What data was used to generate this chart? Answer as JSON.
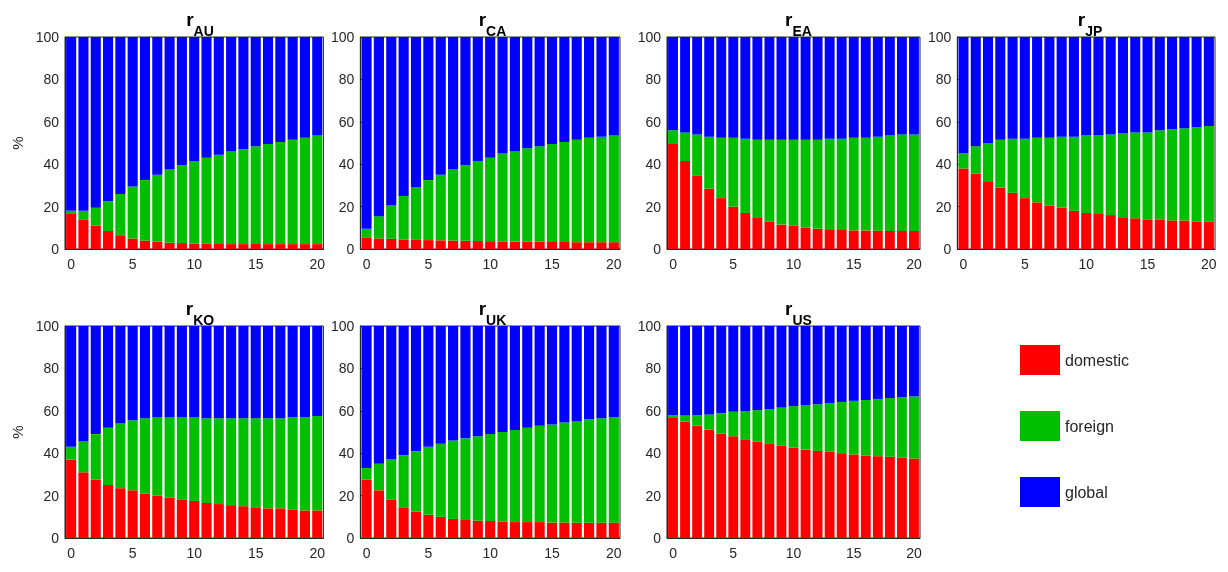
{
  "chart_data": [
    {
      "type": "bar",
      "title": "r$_{AU}$",
      "ylabel": "%",
      "stacked": true,
      "ylim": [
        0,
        100
      ],
      "yticks": [
        0,
        20,
        40,
        60,
        80,
        100
      ],
      "grid": false,
      "categories": [
        "0",
        null,
        null,
        null,
        null,
        "5",
        null,
        null,
        null,
        null,
        "10",
        null,
        null,
        null,
        null,
        "15",
        null,
        null,
        null,
        null,
        "20"
      ],
      "series": [
        {
          "color": "#ff0000",
          "values": [
            16.5,
            14,
            11,
            8.5,
            6.5,
            5,
            4,
            3.5,
            3,
            2.8,
            2.6,
            2.5,
            2.4,
            2.3,
            2.3,
            2.3,
            2.3,
            2.3,
            2.3,
            2.3,
            2.3
          ]
        },
        {
          "color": "#00bf00",
          "values": [
            1.5,
            4,
            8.5,
            14,
            19.5,
            24.5,
            28.5,
            31.5,
            34.5,
            36.7,
            38.9,
            40.5,
            42.1,
            43.7,
            44.7,
            46.2,
            47.2,
            48.2,
            49.2,
            50.2,
            51.2
          ]
        },
        {
          "color": "#0000ff",
          "values": [
            82,
            82,
            80.5,
            77.5,
            74,
            70.5,
            67.5,
            65,
            62.5,
            60.5,
            58.5,
            57,
            55.5,
            54,
            53,
            51.5,
            50.5,
            49.5,
            48.5,
            47.5,
            46.5
          ]
        }
      ]
    },
    {
      "type": "bar",
      "title": "r$_{CA}$",
      "stacked": true,
      "ylim": [
        0,
        100
      ],
      "yticks": [
        0,
        20,
        40,
        60,
        80,
        100
      ],
      "grid": false,
      "categories": [
        "0",
        null,
        null,
        null,
        null,
        "5",
        null,
        null,
        null,
        null,
        "10",
        null,
        null,
        null,
        null,
        "15",
        null,
        null,
        null,
        null,
        "20"
      ],
      "series": [
        {
          "color": "#ff0000",
          "values": [
            5.5,
            5,
            4.8,
            4.5,
            4.3,
            4.2,
            4.1,
            4,
            3.9,
            3.8,
            3.7,
            3.6,
            3.5,
            3.4,
            3.4,
            3.3,
            3.3,
            3.2,
            3.2,
            3.2,
            3.2
          ]
        },
        {
          "color": "#00bf00",
          "values": [
            4,
            10.5,
            15.7,
            20.5,
            24.7,
            28.3,
            30.9,
            33.5,
            35.6,
            37.7,
            39.3,
            41.4,
            42.5,
            44.1,
            45.1,
            46.2,
            47.2,
            48.3,
            49.3,
            49.8,
            50.3
          ]
        },
        {
          "color": "#0000ff",
          "values": [
            90.5,
            84.5,
            79.5,
            75,
            71,
            67.5,
            65,
            62.5,
            60.5,
            58.5,
            57,
            55,
            54,
            52.5,
            51.5,
            50.5,
            49.5,
            48.5,
            47.5,
            47,
            46.5
          ]
        }
      ]
    },
    {
      "type": "bar",
      "title": "r$_{EA}$",
      "stacked": true,
      "ylim": [
        0,
        100
      ],
      "yticks": [
        0,
        20,
        40,
        60,
        80,
        100
      ],
      "grid": false,
      "categories": [
        "0",
        null,
        null,
        null,
        null,
        "5",
        null,
        null,
        null,
        null,
        "10",
        null,
        null,
        null,
        null,
        "15",
        null,
        null,
        null,
        null,
        "20"
      ],
      "series": [
        {
          "color": "#ff0000",
          "values": [
            49.5,
            41.5,
            34.5,
            28.5,
            24,
            20,
            17,
            15,
            13,
            11.5,
            11,
            10,
            9.5,
            9,
            9,
            8.8,
            8.7,
            8.6,
            8.5,
            8.5,
            8.5
          ]
        },
        {
          "color": "#00bf00",
          "values": [
            6.5,
            13.5,
            19.5,
            24.5,
            28.5,
            32.5,
            35,
            36.5,
            38.5,
            40,
            40.5,
            41.5,
            42,
            43,
            43,
            43.7,
            43.8,
            44.4,
            45,
            45.5,
            45.5
          ]
        },
        {
          "color": "#0000ff",
          "values": [
            44,
            45,
            46,
            47,
            47.5,
            47.5,
            48,
            48.5,
            48.5,
            48.5,
            48.5,
            48.5,
            48.5,
            48,
            48,
            47.5,
            47.5,
            47,
            46.5,
            46,
            46
          ]
        }
      ]
    },
    {
      "type": "bar",
      "title": "r$_{JP}$",
      "stacked": true,
      "ylim": [
        0,
        100
      ],
      "yticks": [
        0,
        20,
        40,
        60,
        80,
        100
      ],
      "grid": false,
      "categories": [
        "0",
        null,
        null,
        null,
        null,
        "5",
        null,
        null,
        null,
        null,
        "10",
        null,
        null,
        null,
        null,
        "15",
        null,
        null,
        null,
        null,
        "20"
      ],
      "series": [
        {
          "color": "#ff0000",
          "values": [
            38,
            35.5,
            32,
            29,
            26.5,
            24,
            22,
            20.5,
            19.5,
            18,
            17,
            16.5,
            16,
            15,
            14.5,
            14,
            14,
            13.5,
            13.5,
            13,
            13
          ]
        },
        {
          "color": "#00bf00",
          "values": [
            7,
            13,
            18,
            22.5,
            25.5,
            28,
            30.5,
            32,
            33.5,
            35,
            36.5,
            37,
            38,
            39.5,
            40.5,
            41,
            42,
            43,
            43.5,
            44.5,
            45
          ]
        },
        {
          "color": "#0000ff",
          "values": [
            55,
            51.5,
            50,
            48.5,
            48,
            48,
            47.5,
            47.5,
            47,
            47,
            46.5,
            46.5,
            46,
            45.5,
            45,
            45,
            44,
            43.5,
            43,
            42.5,
            42
          ]
        }
      ]
    },
    {
      "type": "bar",
      "title": "r$_{KO}$",
      "ylabel": "%",
      "stacked": true,
      "ylim": [
        0,
        100
      ],
      "yticks": [
        0,
        20,
        40,
        60,
        80,
        100
      ],
      "grid": false,
      "categories": [
        "0",
        null,
        null,
        null,
        null,
        "5",
        null,
        null,
        null,
        null,
        "10",
        null,
        null,
        null,
        null,
        "15",
        null,
        null,
        null,
        null,
        "20"
      ],
      "series": [
        {
          "color": "#ff0000",
          "values": [
            37,
            31,
            27.5,
            25,
            23.5,
            22.5,
            21,
            20,
            19,
            18,
            17.5,
            16.5,
            16,
            15.5,
            15,
            14.5,
            14,
            14,
            13.5,
            13,
            13
          ]
        },
        {
          "color": "#00bf00",
          "values": [
            6,
            14.5,
            21.5,
            27,
            30.5,
            33,
            35.5,
            37,
            38,
            39,
            39.5,
            40,
            40.5,
            41,
            41.5,
            42,
            42.5,
            42.5,
            43.5,
            44,
            44.5
          ]
        },
        {
          "color": "#0000ff",
          "values": [
            57,
            54.5,
            51,
            48,
            46,
            44.5,
            43.5,
            43,
            43,
            43,
            43,
            43.5,
            43.5,
            43.5,
            43.5,
            43.5,
            43.5,
            43.5,
            43,
            43,
            42.5
          ]
        }
      ]
    },
    {
      "type": "bar",
      "title": "r$_{UK}$",
      "stacked": true,
      "ylim": [
        0,
        100
      ],
      "yticks": [
        0,
        20,
        40,
        60,
        80,
        100
      ],
      "grid": false,
      "categories": [
        "0",
        null,
        null,
        null,
        null,
        "5",
        null,
        null,
        null,
        null,
        "10",
        null,
        null,
        null,
        null,
        "15",
        null,
        null,
        null,
        null,
        "20"
      ],
      "series": [
        {
          "color": "#ff0000",
          "values": [
            27.5,
            22.5,
            18,
            14.5,
            12.5,
            11,
            10,
            9,
            8.5,
            8.2,
            8,
            7.8,
            7.5,
            7.5,
            7.5,
            7.3,
            7.3,
            7.2,
            7.2,
            7.2,
            7.2
          ]
        },
        {
          "color": "#00bf00",
          "values": [
            5.5,
            12.5,
            19,
            24.5,
            28.5,
            32,
            34.5,
            37,
            38.5,
            39.8,
            41,
            42.2,
            43.5,
            44.5,
            45.5,
            46.2,
            47.2,
            47.8,
            48.8,
            49.3,
            49.8
          ]
        },
        {
          "color": "#0000ff",
          "values": [
            67,
            65,
            63,
            61,
            59,
            57,
            55.5,
            54,
            53,
            52,
            51,
            50,
            49,
            48,
            47,
            46.5,
            45.5,
            45,
            44,
            43.5,
            43
          ]
        }
      ]
    },
    {
      "type": "bar",
      "title": "r$_{US}$",
      "stacked": true,
      "ylim": [
        0,
        100
      ],
      "yticks": [
        0,
        20,
        40,
        60,
        80,
        100
      ],
      "grid": false,
      "legend": "right",
      "categories": [
        "0",
        null,
        null,
        null,
        null,
        "5",
        null,
        null,
        null,
        null,
        "10",
        null,
        null,
        null,
        null,
        "15",
        null,
        null,
        null,
        null,
        "20"
      ],
      "series": [
        {
          "name": "domestic",
          "color": "#ff0000",
          "values": [
            57,
            55,
            53,
            51.2,
            49.3,
            48,
            46.6,
            45.4,
            44.4,
            43.6,
            42.7,
            41.8,
            41.1,
            40.7,
            40,
            39.4,
            38.9,
            38.6,
            38.3,
            38,
            37.5
          ]
        },
        {
          "name": "foreign",
          "color": "#00bf00",
          "values": [
            1,
            2.8,
            4.9,
            7.1,
            9.5,
            11.5,
            13.2,
            14.9,
            16.4,
            17.9,
            19.5,
            20.8,
            22,
            23,
            24.2,
            25.3,
            26.2,
            27,
            27.7,
            28.4,
            29.3
          ]
        },
        {
          "name": "global",
          "color": "#0000ff",
          "values": [
            42,
            42.2,
            42.1,
            41.7,
            41.2,
            40.5,
            40.2,
            39.7,
            39.2,
            38.5,
            37.8,
            37.4,
            36.9,
            36.3,
            35.8,
            35.3,
            34.9,
            34.4,
            34,
            33.6,
            33.2
          ]
        }
      ]
    }
  ]
}
